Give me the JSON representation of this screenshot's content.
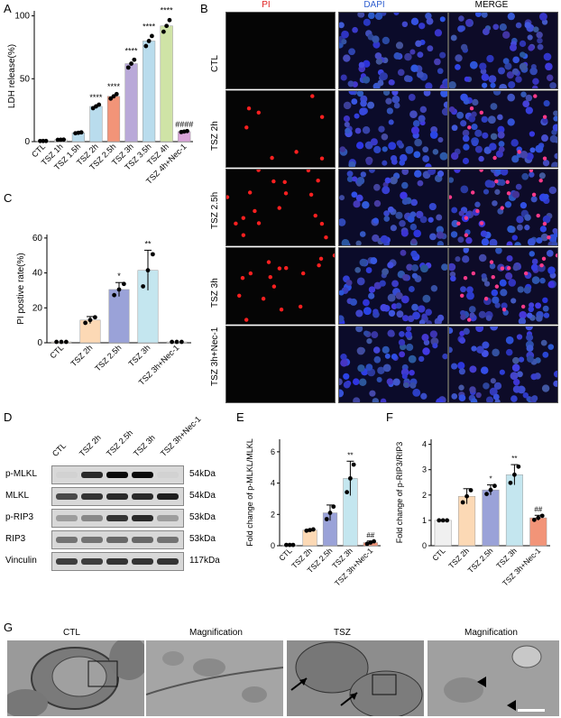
{
  "panels": {
    "A": "A",
    "B": "B",
    "C": "C",
    "D": "D",
    "E": "E",
    "F": "F",
    "G": "G"
  },
  "panelA": {
    "ylabel": "LDH release(%)",
    "yticks": [
      "0",
      "50",
      "100"
    ],
    "categories": [
      "CTL",
      "TSZ 1h",
      "TSZ 1.5h",
      "TSZ 2h",
      "TSZ 2.5h",
      "TSZ 3h",
      "TSZ 3.5h",
      "TSZ 4h",
      "TSZ 4h+Nec-1"
    ],
    "values": [
      0.5,
      1.5,
      7,
      28,
      36,
      62,
      80,
      92,
      8
    ],
    "colors": [
      "#f0f0f0",
      "#f0f0f0",
      "#b9dced",
      "#b9dced",
      "#f29478",
      "#b9a9d8",
      "#b9dced",
      "#cfe3a6",
      "#d8a4d8"
    ],
    "sig": [
      "",
      "",
      "",
      "****",
      "****",
      "****",
      "****",
      "****",
      "####"
    ]
  },
  "panelB": {
    "col_headers": [
      "PI",
      "DAPI",
      "MERGE"
    ],
    "col_colors": [
      "#e02020",
      "#3060d0",
      "#000000"
    ],
    "rows": [
      "CTL",
      "TSZ 2h",
      "TSZ 2.5h",
      "TSZ 3h",
      "TSZ 3h+Nec-1"
    ]
  },
  "panelC": {
    "ylabel": "PI postive rate(%)",
    "yticks": [
      "0",
      "20",
      "40",
      "60"
    ],
    "categories": [
      "CTL",
      "TSZ 2h",
      "TSZ 2.5h",
      "TSZ 3h",
      "TSZ 3h+Nec-1"
    ],
    "values": [
      0.5,
      13,
      30.5,
      41.5,
      0.5
    ],
    "errors": [
      0,
      2,
      4,
      11.5,
      0
    ],
    "colors": [
      "#f5e6d0",
      "#fcd9b5",
      "#9aa2d8",
      "#c4e6ef",
      "#f5f5f5"
    ],
    "sig": [
      "",
      "",
      "*",
      "**",
      ""
    ]
  },
  "panelD": {
    "lanes": [
      "CTL",
      "TSZ 2h",
      "TSZ 2.5h",
      "TSZ 3h",
      "TSZ 3h+Nec-1"
    ],
    "bands": [
      {
        "name": "p-MLKL",
        "kda": "54kDa"
      },
      {
        "name": "MLKL",
        "kda": "54kDa"
      },
      {
        "name": "p-RIP3",
        "kda": "53kDa"
      },
      {
        "name": "RIP3",
        "kda": "53kDa"
      },
      {
        "name": "Vinculin",
        "kda": "117kDa"
      }
    ]
  },
  "panelE": {
    "ylabel": "Fold change of p-MLKL/MLKL",
    "yticks": [
      "0",
      "2",
      "4",
      "6"
    ],
    "categories": [
      "CTL",
      "TSZ 2h",
      "TSZ 2.5h",
      "TSZ 3h",
      "TSZ 3h+Nec-1"
    ],
    "values": [
      0.05,
      1.0,
      2.1,
      4.3,
      0.2
    ],
    "errors": [
      0,
      0.05,
      0.5,
      1.1,
      0.1
    ],
    "colors": [
      "#f0f0f0",
      "#fcd9b5",
      "#9aa2d8",
      "#c4e6ef",
      "#f29478"
    ],
    "sig": [
      "",
      "",
      "",
      "**",
      "##"
    ]
  },
  "panelF": {
    "ylabel": "Fold change of p-RIP3/RIP3",
    "yticks": [
      "0",
      "1",
      "2",
      "3",
      "4"
    ],
    "categories": [
      "CTL",
      "TSZ 2h",
      "TSZ 2.5h",
      "TSZ 3h",
      "TSZ 3h+Nec-1"
    ],
    "values": [
      1.0,
      1.95,
      2.2,
      2.8,
      1.1
    ],
    "errors": [
      0,
      0.3,
      0.2,
      0.4,
      0.1
    ],
    "colors": [
      "#f0f0f0",
      "#fcd9b5",
      "#9aa2d8",
      "#c4e6ef",
      "#f29478"
    ],
    "sig": [
      "",
      "",
      "*",
      "**",
      "##"
    ]
  },
  "panelG": {
    "headers": [
      "CTL",
      "Magnification",
      "TSZ",
      "Magnification"
    ]
  }
}
